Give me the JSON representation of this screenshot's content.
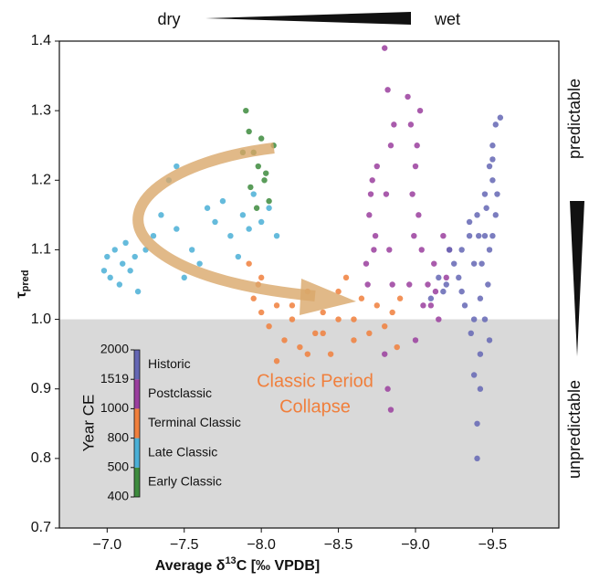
{
  "chart_data": {
    "type": "scatter",
    "xlabel": [
      "Average δ",
      "13",
      "C [‰ VPDB]"
    ],
    "ylabel": [
      "τ",
      "pred"
    ],
    "annotations": {
      "dry": "dry",
      "wet": "wet",
      "predictable": "predictable",
      "unpredictable": "unpredictable",
      "collapse": [
        "Classic Period",
        "Collapse"
      ]
    },
    "xlim": [
      -6.69,
      -9.93
    ],
    "ylim": [
      0.7,
      1.4
    ],
    "xticks": [
      {
        "value": -7,
        "label": "−7.0"
      },
      {
        "value": -7.5,
        "label": "−7.5"
      },
      {
        "value": -8,
        "label": "−8.0"
      },
      {
        "value": -8.5,
        "label": "−8.5"
      },
      {
        "value": -9,
        "label": "−9.0"
      },
      {
        "value": -9.5,
        "label": "−9.5"
      }
    ],
    "yticks": [
      0.7,
      0.8,
      0.9,
      {
        "value": 1,
        "label": "1.0"
      },
      1.1,
      1.2,
      1.3,
      1.4
    ],
    "shade_below": 1,
    "colorbar_label": "Year CE",
    "colorbar_ticks": [
      400,
      500,
      800,
      1000,
      1519,
      2000
    ],
    "series": [
      {
        "name": "Early Classic",
        "color": "#3d8b3d",
        "x": [
          -7.9,
          -7.92,
          -7.95,
          -7.98,
          -8.0,
          -8.02,
          -8.05,
          -7.88,
          -8.08,
          -7.97,
          -8.03,
          -7.93
        ],
        "y": [
          1.3,
          1.27,
          1.24,
          1.22,
          1.26,
          1.2,
          1.17,
          1.24,
          1.25,
          1.16,
          1.21,
          1.19
        ]
      },
      {
        "name": "Late Classic",
        "color": "#4aafd6",
        "x": [
          -6.98,
          -7.0,
          -7.02,
          -7.05,
          -7.08,
          -7.1,
          -7.12,
          -7.15,
          -7.18,
          -7.2,
          -7.25,
          -7.3,
          -7.35,
          -7.4,
          -7.45,
          -7.5,
          -7.55,
          -7.6,
          -7.65,
          -7.7,
          -7.75,
          -7.8,
          -7.85,
          -7.88,
          -7.92,
          -7.95,
          -8.0,
          -8.05,
          -8.1,
          -7.45
        ],
        "y": [
          1.07,
          1.09,
          1.06,
          1.1,
          1.05,
          1.08,
          1.11,
          1.07,
          1.09,
          1.04,
          1.1,
          1.12,
          1.15,
          1.2,
          1.13,
          1.06,
          1.1,
          1.08,
          1.16,
          1.14,
          1.17,
          1.12,
          1.09,
          1.15,
          1.13,
          1.18,
          1.14,
          1.16,
          1.12,
          1.22
        ]
      },
      {
        "name": "Terminal Classic",
        "color": "#f07f3c",
        "x": [
          -7.92,
          -7.95,
          -7.98,
          -8.0,
          -8.05,
          -8.1,
          -8.15,
          -8.2,
          -8.25,
          -8.3,
          -8.35,
          -8.4,
          -8.45,
          -8.5,
          -8.55,
          -8.6,
          -8.65,
          -8.7,
          -8.75,
          -8.8,
          -8.85,
          -8.88,
          -8.9,
          -8.1,
          -8.2,
          -8.3,
          -8.4,
          -8.5,
          -8.6,
          -8.0
        ],
        "y": [
          1.08,
          1.03,
          1.05,
          1.01,
          0.99,
          1.02,
          0.97,
          1.0,
          0.96,
          1.04,
          0.98,
          1.01,
          0.95,
          1.0,
          1.06,
          0.97,
          1.03,
          0.98,
          1.02,
          0.99,
          1.01,
          0.96,
          1.03,
          0.94,
          1.02,
          0.95,
          0.98,
          1.04,
          1.0,
          1.06
        ]
      },
      {
        "name": "Postclassic",
        "color": "#9a3e9e",
        "x": [
          -8.68,
          -8.7,
          -8.72,
          -8.74,
          -8.69,
          -8.71,
          -8.73,
          -8.75,
          -8.8,
          -8.82,
          -8.84,
          -8.81,
          -8.83,
          -8.85,
          -8.8,
          -8.82,
          -8.84,
          -8.86,
          -8.95,
          -8.97,
          -9.0,
          -9.02,
          -9.04,
          -8.96,
          -8.98,
          -9.01,
          -9.03,
          -9.05,
          -8.99,
          -9.0,
          -9.08,
          -9.1,
          -9.12,
          -9.15,
          -9.18,
          -9.2,
          -9.22,
          -9.13
        ],
        "y": [
          1.08,
          1.15,
          1.2,
          1.12,
          1.05,
          1.18,
          1.1,
          1.22,
          1.39,
          1.33,
          1.25,
          1.18,
          1.1,
          1.05,
          0.95,
          0.9,
          0.87,
          1.28,
          1.32,
          1.28,
          1.22,
          1.15,
          1.1,
          1.05,
          1.18,
          1.25,
          1.3,
          1.02,
          1.12,
          0.97,
          1.05,
          1.02,
          1.08,
          1.0,
          1.12,
          1.06,
          1.1,
          1.04
        ]
      },
      {
        "name": "Historic",
        "color": "#6466b4",
        "x": [
          -9.1,
          -9.15,
          -9.2,
          -9.25,
          -9.3,
          -9.32,
          -9.35,
          -9.38,
          -9.4,
          -9.42,
          -9.45,
          -9.48,
          -9.5,
          -9.52,
          -9.55,
          -9.5,
          -9.48,
          -9.52,
          -9.47,
          -9.45,
          -9.42,
          -9.4,
          -9.38,
          -9.36,
          -9.4,
          -9.43,
          -9.5,
          -9.53,
          -9.28,
          -9.22,
          -9.18,
          -9.35,
          -9.45,
          -9.5,
          -9.48,
          -9.42,
          -9.38,
          -9.41,
          -9.46,
          -9.3
        ],
        "y": [
          1.03,
          1.06,
          1.05,
          1.08,
          1.1,
          1.02,
          1.12,
          1.0,
          1.15,
          0.95,
          1.18,
          1.22,
          1.25,
          1.28,
          1.29,
          1.2,
          1.1,
          1.15,
          1.05,
          1.0,
          0.9,
          0.8,
          0.92,
          0.98,
          0.85,
          1.08,
          1.12,
          1.18,
          1.06,
          1.1,
          1.04,
          1.14,
          1.12,
          1.23,
          0.97,
          1.03,
          1.08,
          1.12,
          1.16,
          1.04
        ]
      }
    ]
  }
}
